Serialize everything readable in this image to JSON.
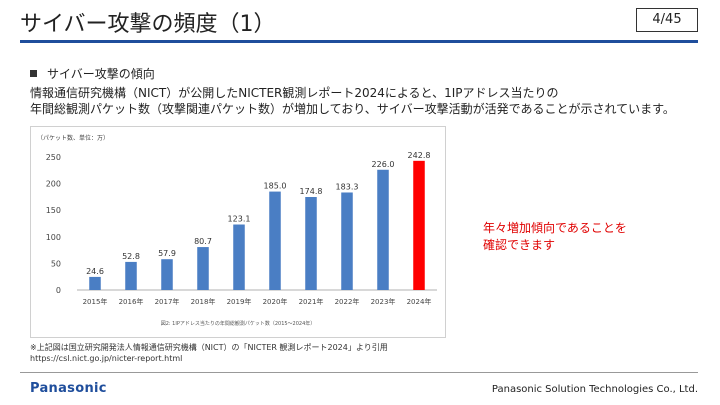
{
  "slide": {
    "title": "サイバー攻撃の頻度（1）",
    "page_number": "4/45",
    "section_heading": "サイバー攻撃の傾向",
    "body_line1": "情報通信研究機構（NICT）が公開したNICTER観測レポート2024によると、1IPアドレス当たりの",
    "body_line2": "年間総観測パケット数（攻撃関連パケット数）が増加しており、サイバー攻撃活動が活発であることが示されています。",
    "callout_line1": "年々増加傾向であることを",
    "callout_line2": "確認できます",
    "source_line1": "※上記図は国立研究開発法人情報通信研究機構（NICT）の「NICTER 観測レポート2024」より引用",
    "source_line2": "https://csl.nict.go.jp/nicter-report.html",
    "logo": "Panasonic",
    "company": "Panasonic Solution Technologies Co., Ltd."
  },
  "colors": {
    "accent_blue": "#1f4e9c",
    "bar_blue": "#4a7ec4",
    "bar_highlight": "#ff0000",
    "callout_red": "#e00000"
  },
  "chart_data": {
    "type": "bar",
    "unit_label": "（パケット数、単位：万）",
    "caption": "図2: 1IPアドレス当たりの年間総観測パケット数（2015〜2024年）",
    "categories": [
      "2015年",
      "2016年",
      "2017年",
      "2018年",
      "2019年",
      "2020年",
      "2021年",
      "2022年",
      "2023年",
      "2024年"
    ],
    "values": [
      24.6,
      52.8,
      57.9,
      80.7,
      123.1,
      185.0,
      174.8,
      183.3,
      226.0,
      242.8
    ],
    "value_labels": [
      "24.6",
      "52.8",
      "57.9",
      "80.7",
      "123.1",
      "185.0",
      "174.8",
      "183.3",
      "226.0",
      "242.8"
    ],
    "highlight_index": 9,
    "ylim": [
      0,
      250
    ],
    "yticks": [
      0,
      50,
      100,
      150,
      200,
      250
    ],
    "grid": false
  }
}
